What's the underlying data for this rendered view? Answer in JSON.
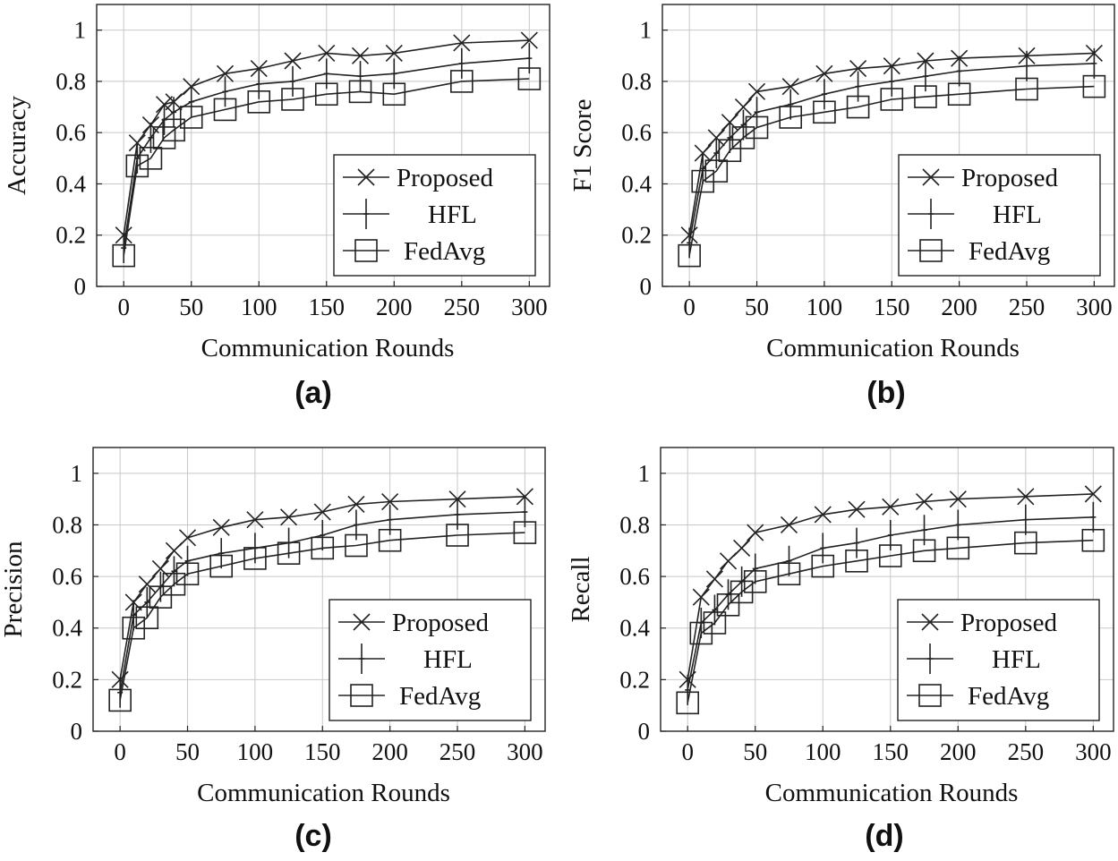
{
  "chart_data": [
    {
      "type": "line",
      "caption": "(a)",
      "xlabel": "Communication Rounds",
      "ylabel": "Accuracy",
      "xlim": [
        -20,
        315
      ],
      "ylim": [
        0,
        1.1
      ],
      "xticks": [
        0,
        50,
        100,
        150,
        200,
        250,
        300
      ],
      "yticks": [
        0,
        0.2,
        0.4,
        0.6,
        0.8,
        1
      ],
      "grid": true,
      "legend_position": "bottom-right",
      "series": [
        {
          "name": "Proposed",
          "marker": "x",
          "x": [
            0,
            10,
            20,
            30,
            37,
            50,
            75,
            100,
            125,
            150,
            175,
            200,
            250,
            300
          ],
          "y": [
            0.2,
            0.56,
            0.63,
            0.71,
            0.72,
            0.78,
            0.83,
            0.85,
            0.88,
            0.91,
            0.9,
            0.91,
            0.95,
            0.96
          ]
        },
        {
          "name": "HFL",
          "marker": "+",
          "x": [
            0,
            10,
            20,
            30,
            37,
            50,
            75,
            100,
            125,
            150,
            175,
            200,
            250,
            300
          ],
          "y": [
            0.15,
            0.5,
            0.58,
            0.65,
            0.68,
            0.72,
            0.76,
            0.79,
            0.8,
            0.83,
            0.82,
            0.83,
            0.87,
            0.89
          ]
        },
        {
          "name": "FedAvg",
          "marker": "square",
          "x": [
            0,
            10,
            20,
            30,
            37,
            50,
            75,
            100,
            125,
            150,
            175,
            200,
            250,
            300
          ],
          "y": [
            0.12,
            0.47,
            0.5,
            0.58,
            0.61,
            0.66,
            0.69,
            0.72,
            0.73,
            0.75,
            0.76,
            0.75,
            0.8,
            0.81
          ]
        }
      ]
    },
    {
      "type": "line",
      "caption": "(b)",
      "xlabel": "Communication Rounds",
      "ylabel": "F1 Score",
      "xlim": [
        -20,
        315
      ],
      "ylim": [
        0,
        1.1
      ],
      "xticks": [
        0,
        50,
        100,
        150,
        200,
        250,
        300
      ],
      "yticks": [
        0,
        0.2,
        0.4,
        0.6,
        0.8,
        1
      ],
      "grid": true,
      "legend_position": "bottom-right",
      "series": [
        {
          "name": "Proposed",
          "marker": "x",
          "x": [
            0,
            10,
            20,
            30,
            40,
            50,
            75,
            100,
            125,
            150,
            175,
            200,
            250,
            300
          ],
          "y": [
            0.2,
            0.52,
            0.58,
            0.64,
            0.7,
            0.76,
            0.78,
            0.83,
            0.85,
            0.86,
            0.88,
            0.89,
            0.9,
            0.91
          ]
        },
        {
          "name": "HFL",
          "marker": "+",
          "x": [
            0,
            10,
            20,
            30,
            40,
            50,
            75,
            100,
            125,
            150,
            175,
            200,
            250,
            300
          ],
          "y": [
            0.17,
            0.46,
            0.52,
            0.58,
            0.63,
            0.68,
            0.71,
            0.75,
            0.78,
            0.8,
            0.82,
            0.84,
            0.86,
            0.87
          ]
        },
        {
          "name": "FedAvg",
          "marker": "square",
          "x": [
            0,
            10,
            20,
            30,
            40,
            50,
            75,
            100,
            125,
            150,
            175,
            200,
            250,
            300
          ],
          "y": [
            0.12,
            0.41,
            0.45,
            0.53,
            0.58,
            0.62,
            0.66,
            0.68,
            0.7,
            0.73,
            0.74,
            0.75,
            0.77,
            0.78
          ]
        }
      ]
    },
    {
      "type": "line",
      "caption": "(c)",
      "xlabel": "Communication Rounds",
      "ylabel": "Precision",
      "xlim": [
        -20,
        315
      ],
      "ylim": [
        0,
        1.1
      ],
      "xticks": [
        0,
        50,
        100,
        150,
        200,
        250,
        300
      ],
      "yticks": [
        0,
        0.2,
        0.4,
        0.6,
        0.8,
        1
      ],
      "grid": true,
      "legend_position": "bottom-right",
      "series": [
        {
          "name": "Proposed",
          "marker": "x",
          "x": [
            0,
            10,
            20,
            30,
            40,
            50,
            75,
            100,
            125,
            150,
            175,
            200,
            250,
            300
          ],
          "y": [
            0.2,
            0.5,
            0.57,
            0.63,
            0.7,
            0.75,
            0.79,
            0.82,
            0.83,
            0.85,
            0.88,
            0.89,
            0.9,
            0.91
          ]
        },
        {
          "name": "HFL",
          "marker": "+",
          "x": [
            0,
            10,
            20,
            30,
            40,
            50,
            75,
            100,
            125,
            150,
            175,
            200,
            250,
            300
          ],
          "y": [
            0.15,
            0.45,
            0.5,
            0.56,
            0.62,
            0.66,
            0.69,
            0.71,
            0.73,
            0.76,
            0.8,
            0.82,
            0.84,
            0.85
          ]
        },
        {
          "name": "FedAvg",
          "marker": "square",
          "x": [
            0,
            10,
            20,
            30,
            40,
            50,
            75,
            100,
            125,
            150,
            175,
            200,
            250,
            300
          ],
          "y": [
            0.12,
            0.4,
            0.44,
            0.52,
            0.57,
            0.61,
            0.64,
            0.67,
            0.69,
            0.71,
            0.72,
            0.74,
            0.76,
            0.77
          ]
        }
      ]
    },
    {
      "type": "line",
      "caption": "(d)",
      "xlabel": "Communication Rounds",
      "ylabel": "Recall",
      "xlim": [
        -20,
        315
      ],
      "ylim": [
        0,
        1.1
      ],
      "xticks": [
        0,
        50,
        100,
        150,
        200,
        250,
        300
      ],
      "yticks": [
        0,
        0.2,
        0.4,
        0.6,
        0.8,
        1
      ],
      "grid": true,
      "legend_position": "bottom-right",
      "series": [
        {
          "name": "Proposed",
          "marker": "x",
          "x": [
            0,
            10,
            20,
            30,
            40,
            50,
            75,
            100,
            125,
            150,
            175,
            200,
            250,
            300
          ],
          "y": [
            0.2,
            0.52,
            0.59,
            0.66,
            0.71,
            0.77,
            0.8,
            0.84,
            0.86,
            0.87,
            0.89,
            0.9,
            0.91,
            0.92
          ]
        },
        {
          "name": "HFL",
          "marker": "+",
          "x": [
            0,
            10,
            20,
            30,
            40,
            50,
            75,
            100,
            125,
            150,
            175,
            200,
            250,
            300
          ],
          "y": [
            0.16,
            0.42,
            0.47,
            0.53,
            0.58,
            0.63,
            0.66,
            0.71,
            0.73,
            0.76,
            0.78,
            0.8,
            0.82,
            0.83
          ]
        },
        {
          "name": "FedAvg",
          "marker": "square",
          "x": [
            0,
            10,
            20,
            30,
            40,
            50,
            75,
            100,
            125,
            150,
            175,
            200,
            250,
            300
          ],
          "y": [
            0.11,
            0.38,
            0.42,
            0.49,
            0.54,
            0.58,
            0.61,
            0.64,
            0.66,
            0.68,
            0.7,
            0.71,
            0.73,
            0.74
          ]
        }
      ]
    }
  ]
}
